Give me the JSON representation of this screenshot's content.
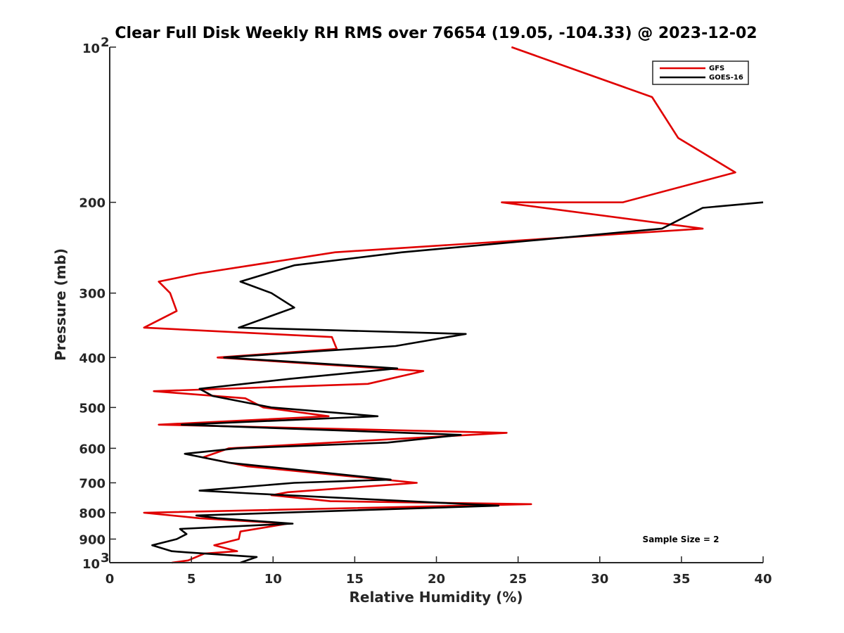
{
  "chart_data": {
    "type": "line",
    "title": "Clear Full Disk Weekly RH RMS over 76654 (19.05, -104.33) @ 2023-12-02",
    "xlabel": "Relative Humidity (%)",
    "ylabel": "Pressure (mb)",
    "xlim": [
      0,
      40
    ],
    "ylim": [
      100,
      1000
    ],
    "yscale": "log",
    "y_reversed": true,
    "grid": false,
    "legend_position": "top-right",
    "x_ticks": [
      0,
      5,
      10,
      15,
      20,
      25,
      30,
      35,
      40
    ],
    "y_ticks": [
      {
        "value": 100,
        "base": "10",
        "exp": "2"
      },
      {
        "value": 200,
        "label": "200"
      },
      {
        "value": 300,
        "label": "300"
      },
      {
        "value": 400,
        "label": "400"
      },
      {
        "value": 500,
        "label": "500"
      },
      {
        "value": 600,
        "label": "600"
      },
      {
        "value": 700,
        "label": "700"
      },
      {
        "value": 800,
        "label": "800"
      },
      {
        "value": 900,
        "label": "900"
      },
      {
        "value": 1000,
        "base": "10",
        "exp": "3"
      }
    ],
    "annotation": "Sample Size = 2",
    "series": [
      {
        "name": "GFS",
        "color": "#e00000",
        "points": [
          {
            "x": 24.6,
            "p": 100
          },
          {
            "x": 33.2,
            "p": 125
          },
          {
            "x": 34.8,
            "p": 150
          },
          {
            "x": 38.3,
            "p": 175
          },
          {
            "x": 31.4,
            "p": 200
          },
          {
            "x": 24.0,
            "p": 200
          },
          {
            "x": 36.3,
            "p": 225
          },
          {
            "x": 13.8,
            "p": 250
          },
          {
            "x": 5.4,
            "p": 275
          },
          {
            "x": 3.0,
            "p": 285
          },
          {
            "x": 3.7,
            "p": 300
          },
          {
            "x": 4.1,
            "p": 325
          },
          {
            "x": 2.1,
            "p": 350
          },
          {
            "x": 13.6,
            "p": 365
          },
          {
            "x": 13.9,
            "p": 385
          },
          {
            "x": 6.6,
            "p": 400
          },
          {
            "x": 19.2,
            "p": 425
          },
          {
            "x": 15.8,
            "p": 450
          },
          {
            "x": 2.7,
            "p": 465
          },
          {
            "x": 8.3,
            "p": 480
          },
          {
            "x": 9.4,
            "p": 500
          },
          {
            "x": 13.4,
            "p": 520
          },
          {
            "x": 3.0,
            "p": 540
          },
          {
            "x": 24.3,
            "p": 560
          },
          {
            "x": 7.3,
            "p": 600
          },
          {
            "x": 5.7,
            "p": 625
          },
          {
            "x": 8.4,
            "p": 650
          },
          {
            "x": 18.8,
            "p": 700
          },
          {
            "x": 10.9,
            "p": 730
          },
          {
            "x": 9.9,
            "p": 740
          },
          {
            "x": 13.5,
            "p": 760
          },
          {
            "x": 25.8,
            "p": 770
          },
          {
            "x": 2.1,
            "p": 800
          },
          {
            "x": 5.5,
            "p": 820
          },
          {
            "x": 10.9,
            "p": 840
          },
          {
            "x": 8.0,
            "p": 870
          },
          {
            "x": 7.9,
            "p": 900
          },
          {
            "x": 6.4,
            "p": 925
          },
          {
            "x": 7.8,
            "p": 950
          },
          {
            "x": 5.8,
            "p": 960
          },
          {
            "x": 4.8,
            "p": 990
          },
          {
            "x": 3.8,
            "p": 1000
          }
        ]
      },
      {
        "name": "GOES-16",
        "color": "#000000",
        "points": [
          {
            "x": 40.0,
            "p": 200
          },
          {
            "x": 36.3,
            "p": 205
          },
          {
            "x": 33.8,
            "p": 225
          },
          {
            "x": 17.9,
            "p": 250
          },
          {
            "x": 11.3,
            "p": 265
          },
          {
            "x": 8.0,
            "p": 285
          },
          {
            "x": 9.9,
            "p": 300
          },
          {
            "x": 11.3,
            "p": 320
          },
          {
            "x": 7.9,
            "p": 350
          },
          {
            "x": 21.8,
            "p": 360
          },
          {
            "x": 17.5,
            "p": 380
          },
          {
            "x": 7.0,
            "p": 400
          },
          {
            "x": 17.6,
            "p": 420
          },
          {
            "x": 11.0,
            "p": 440
          },
          {
            "x": 5.5,
            "p": 460
          },
          {
            "x": 6.3,
            "p": 475
          },
          {
            "x": 9.9,
            "p": 500
          },
          {
            "x": 16.4,
            "p": 520
          },
          {
            "x": 4.4,
            "p": 540
          },
          {
            "x": 21.5,
            "p": 565
          },
          {
            "x": 17.0,
            "p": 585
          },
          {
            "x": 7.8,
            "p": 600
          },
          {
            "x": 4.6,
            "p": 615
          },
          {
            "x": 7.3,
            "p": 640
          },
          {
            "x": 17.2,
            "p": 690
          },
          {
            "x": 11.3,
            "p": 700
          },
          {
            "x": 5.5,
            "p": 725
          },
          {
            "x": 9.0,
            "p": 735
          },
          {
            "x": 23.8,
            "p": 775
          },
          {
            "x": 5.3,
            "p": 810
          },
          {
            "x": 6.6,
            "p": 820
          },
          {
            "x": 11.2,
            "p": 840
          },
          {
            "x": 4.3,
            "p": 860
          },
          {
            "x": 4.7,
            "p": 880
          },
          {
            "x": 4.1,
            "p": 900
          },
          {
            "x": 2.6,
            "p": 925
          },
          {
            "x": 3.8,
            "p": 950
          },
          {
            "x": 4.7,
            "p": 955
          },
          {
            "x": 9.0,
            "p": 975
          },
          {
            "x": 8.0,
            "p": 1000
          }
        ]
      }
    ]
  }
}
